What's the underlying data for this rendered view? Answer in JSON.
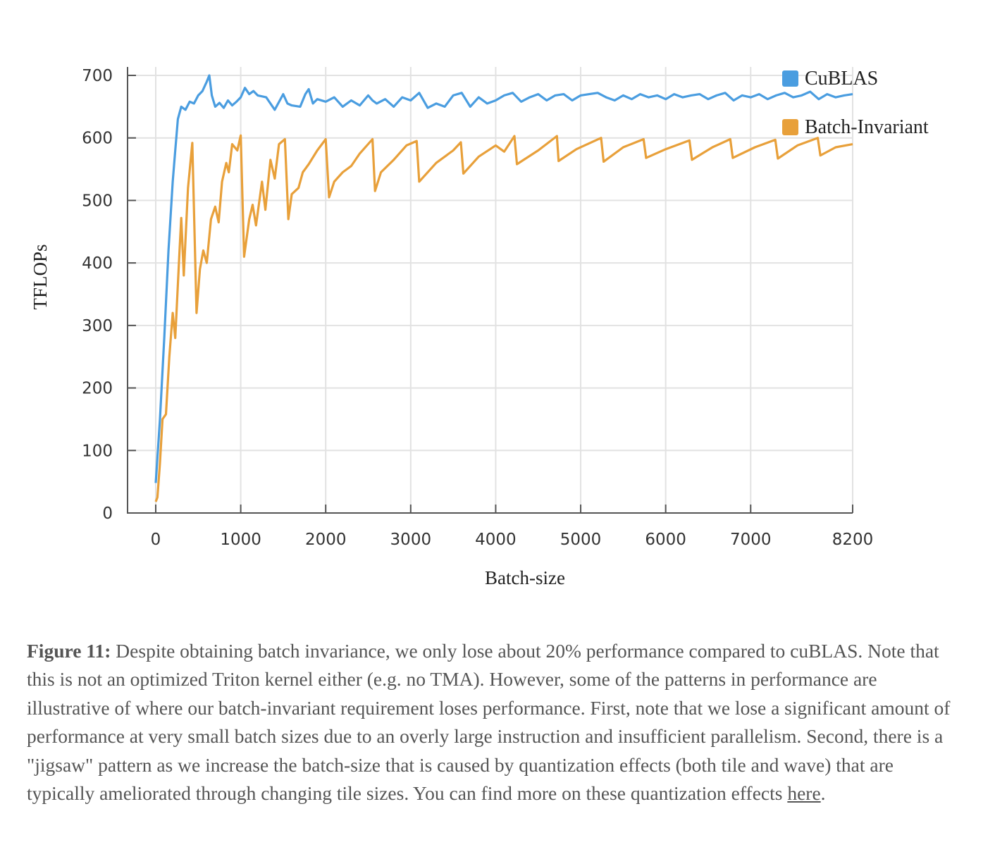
{
  "chart_data": {
    "type": "line",
    "xlabel": "Batch-size",
    "ylabel": "TFLOPs",
    "xlim": [
      -330,
      8200
    ],
    "ylim": [
      0,
      700
    ],
    "x_ticks": [
      0,
      1000,
      2000,
      3000,
      4000,
      5000,
      6000,
      7000,
      8200
    ],
    "y_ticks": [
      0,
      100,
      200,
      300,
      400,
      500,
      600,
      700
    ],
    "grid": true,
    "legend_position": "top-right",
    "series": [
      {
        "name": "CuBLAS",
        "color": "#4a9de0",
        "points": [
          [
            0,
            48
          ],
          [
            50,
            150
          ],
          [
            100,
            280
          ],
          [
            150,
            420
          ],
          [
            200,
            530
          ],
          [
            230,
            580
          ],
          [
            260,
            630
          ],
          [
            300,
            650
          ],
          [
            350,
            645
          ],
          [
            400,
            658
          ],
          [
            450,
            655
          ],
          [
            500,
            668
          ],
          [
            550,
            675
          ],
          [
            600,
            690
          ],
          [
            630,
            700
          ],
          [
            660,
            668
          ],
          [
            700,
            650
          ],
          [
            750,
            656
          ],
          [
            800,
            648
          ],
          [
            850,
            660
          ],
          [
            900,
            652
          ],
          [
            950,
            658
          ],
          [
            1000,
            665
          ],
          [
            1050,
            680
          ],
          [
            1100,
            670
          ],
          [
            1150,
            675
          ],
          [
            1200,
            668
          ],
          [
            1300,
            665
          ],
          [
            1400,
            645
          ],
          [
            1500,
            670
          ],
          [
            1550,
            655
          ],
          [
            1600,
            652
          ],
          [
            1700,
            650
          ],
          [
            1760,
            670
          ],
          [
            1800,
            678
          ],
          [
            1850,
            655
          ],
          [
            1900,
            662
          ],
          [
            2000,
            658
          ],
          [
            2100,
            665
          ],
          [
            2200,
            650
          ],
          [
            2300,
            660
          ],
          [
            2400,
            652
          ],
          [
            2500,
            668
          ],
          [
            2550,
            660
          ],
          [
            2600,
            655
          ],
          [
            2700,
            662
          ],
          [
            2800,
            650
          ],
          [
            2900,
            665
          ],
          [
            3000,
            660
          ],
          [
            3100,
            672
          ],
          [
            3200,
            648
          ],
          [
            3300,
            655
          ],
          [
            3400,
            650
          ],
          [
            3500,
            668
          ],
          [
            3600,
            672
          ],
          [
            3700,
            650
          ],
          [
            3800,
            665
          ],
          [
            3900,
            655
          ],
          [
            4000,
            660
          ],
          [
            4100,
            668
          ],
          [
            4200,
            672
          ],
          [
            4300,
            658
          ],
          [
            4400,
            665
          ],
          [
            4500,
            670
          ],
          [
            4600,
            660
          ],
          [
            4700,
            668
          ],
          [
            4800,
            670
          ],
          [
            4900,
            660
          ],
          [
            5000,
            668
          ],
          [
            5100,
            670
          ],
          [
            5200,
            672
          ],
          [
            5300,
            665
          ],
          [
            5400,
            660
          ],
          [
            5500,
            668
          ],
          [
            5600,
            662
          ],
          [
            5700,
            670
          ],
          [
            5800,
            665
          ],
          [
            5900,
            668
          ],
          [
            6000,
            662
          ],
          [
            6100,
            670
          ],
          [
            6200,
            665
          ],
          [
            6300,
            668
          ],
          [
            6400,
            670
          ],
          [
            6500,
            662
          ],
          [
            6600,
            668
          ],
          [
            6700,
            672
          ],
          [
            6800,
            660
          ],
          [
            6900,
            668
          ],
          [
            7000,
            665
          ],
          [
            7100,
            670
          ],
          [
            7200,
            662
          ],
          [
            7300,
            668
          ],
          [
            7400,
            672
          ],
          [
            7500,
            665
          ],
          [
            7600,
            668
          ],
          [
            7700,
            674
          ],
          [
            7800,
            662
          ],
          [
            7900,
            670
          ],
          [
            8000,
            665
          ],
          [
            8100,
            668
          ],
          [
            8200,
            670
          ]
        ]
      },
      {
        "name": "Batch-Invariant",
        "color": "#e8a03a",
        "points": [
          [
            0,
            18
          ],
          [
            20,
            25
          ],
          [
            50,
            80
          ],
          [
            80,
            150
          ],
          [
            120,
            158
          ],
          [
            160,
            250
          ],
          [
            200,
            320
          ],
          [
            230,
            280
          ],
          [
            280,
            420
          ],
          [
            300,
            472
          ],
          [
            330,
            380
          ],
          [
            380,
            520
          ],
          [
            430,
            592
          ],
          [
            480,
            320
          ],
          [
            520,
            390
          ],
          [
            560,
            420
          ],
          [
            600,
            400
          ],
          [
            650,
            470
          ],
          [
            700,
            490
          ],
          [
            740,
            465
          ],
          [
            780,
            530
          ],
          [
            830,
            560
          ],
          [
            860,
            545
          ],
          [
            900,
            590
          ],
          [
            960,
            580
          ],
          [
            1000,
            604
          ],
          [
            1040,
            410
          ],
          [
            1100,
            470
          ],
          [
            1140,
            493
          ],
          [
            1180,
            460
          ],
          [
            1250,
            530
          ],
          [
            1290,
            485
          ],
          [
            1350,
            565
          ],
          [
            1400,
            535
          ],
          [
            1450,
            590
          ],
          [
            1520,
            598
          ],
          [
            1560,
            470
          ],
          [
            1600,
            510
          ],
          [
            1680,
            520
          ],
          [
            1730,
            545
          ],
          [
            1800,
            558
          ],
          [
            1900,
            580
          ],
          [
            2000,
            598
          ],
          [
            2040,
            505
          ],
          [
            2100,
            530
          ],
          [
            2200,
            545
          ],
          [
            2300,
            555
          ],
          [
            2400,
            575
          ],
          [
            2550,
            598
          ],
          [
            2580,
            515
          ],
          [
            2650,
            545
          ],
          [
            2800,
            565
          ],
          [
            2950,
            588
          ],
          [
            3070,
            595
          ],
          [
            3100,
            530
          ],
          [
            3300,
            560
          ],
          [
            3500,
            580
          ],
          [
            3590,
            593
          ],
          [
            3620,
            543
          ],
          [
            3800,
            570
          ],
          [
            4000,
            588
          ],
          [
            4100,
            578
          ],
          [
            4220,
            603
          ],
          [
            4250,
            558
          ],
          [
            4500,
            580
          ],
          [
            4720,
            603
          ],
          [
            4740,
            563
          ],
          [
            4950,
            582
          ],
          [
            5240,
            600
          ],
          [
            5270,
            562
          ],
          [
            5500,
            585
          ],
          [
            5740,
            598
          ],
          [
            5770,
            568
          ],
          [
            6000,
            582
          ],
          [
            6280,
            596
          ],
          [
            6310,
            565
          ],
          [
            6550,
            585
          ],
          [
            6760,
            598
          ],
          [
            6790,
            568
          ],
          [
            7050,
            585
          ],
          [
            7290,
            597
          ],
          [
            7320,
            567
          ],
          [
            7550,
            588
          ],
          [
            7790,
            600
          ],
          [
            7820,
            572
          ],
          [
            8000,
            585
          ],
          [
            8200,
            590
          ]
        ]
      }
    ]
  },
  "caption": {
    "label": "Figure 11:",
    "text": " Despite obtaining batch invariance, we only lose about 20% performance compared to cuBLAS. Note that this is not an optimized Triton kernel either (e.g. no TMA). However, some of the patterns in performance are illustrative of where our batch-invariant requirement loses performance. First, note that we lose a significant amount of performance at very small batch sizes due to an overly large instruction and insufficient parallelism. Second, there is a \"jigsaw\" pattern as we increase the batch-size that is caused by quantization effects (both tile and wave) that are typically ameliorated through changing tile sizes. You can find more on these quantization effects ",
    "link": "here",
    "end": "."
  }
}
